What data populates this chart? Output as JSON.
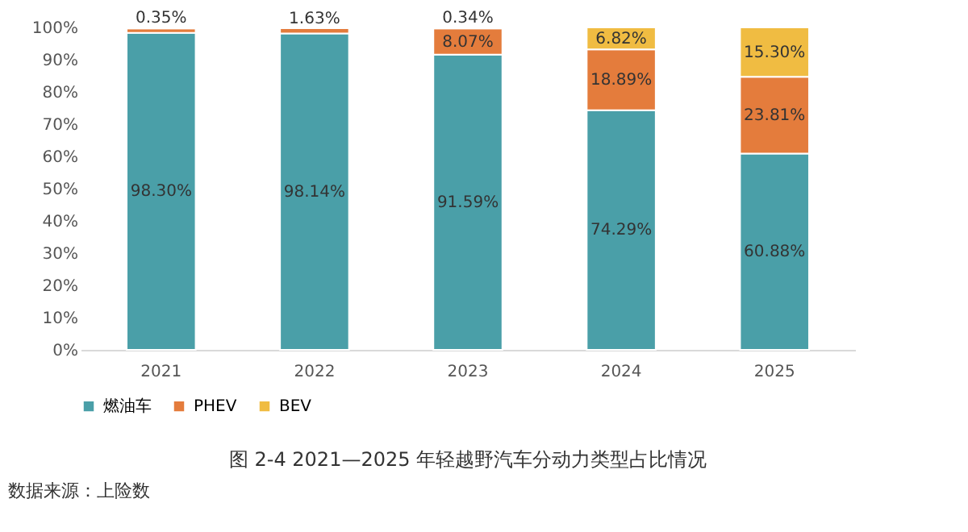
{
  "chart_data": {
    "type": "bar",
    "stacked": true,
    "title": "图 2-4 2021—2025 年轻越野汽车分动力类型占比情况",
    "annotations": [
      "数据来源：上险数"
    ],
    "categories": [
      "2021",
      "2022",
      "2023",
      "2024",
      "2025"
    ],
    "series": [
      {
        "name": "燃油车",
        "color": "#4a9fa8",
        "values": [
          98.3,
          98.14,
          91.59,
          74.29,
          60.88
        ],
        "value_labels": [
          "98.30%",
          "98.14%",
          "91.59%",
          "74.29%",
          "60.88%"
        ]
      },
      {
        "name": "PHEV",
        "color": "#e47c3c",
        "values": [
          1.4,
          1.63,
          8.07,
          18.89,
          23.81
        ],
        "value_labels": [
          null,
          "1.63%",
          "8.07%",
          "18.89%",
          "23.81%"
        ]
      },
      {
        "name": "BEV",
        "color": "#f0bc42",
        "values": [
          0.35,
          0.2,
          0.34,
          6.82,
          15.3
        ],
        "value_labels": [
          "0.35%",
          null,
          "0.34%",
          "6.82%",
          "15.30%"
        ]
      }
    ],
    "ylim": [
      0,
      100
    ],
    "yticks": [
      {
        "value": 0,
        "label": "0%"
      },
      {
        "value": 10,
        "label": "10%"
      },
      {
        "value": 20,
        "label": "20%"
      },
      {
        "value": 30,
        "label": "30%"
      },
      {
        "value": 40,
        "label": "40%"
      },
      {
        "value": 50,
        "label": "50%"
      },
      {
        "value": 60,
        "label": "60%"
      },
      {
        "value": 70,
        "label": "70%"
      },
      {
        "value": 80,
        "label": "80%"
      },
      {
        "value": 90,
        "label": "90%"
      },
      {
        "value": 100,
        "label": "100%"
      }
    ],
    "grid": false,
    "legend": "bottom"
  }
}
